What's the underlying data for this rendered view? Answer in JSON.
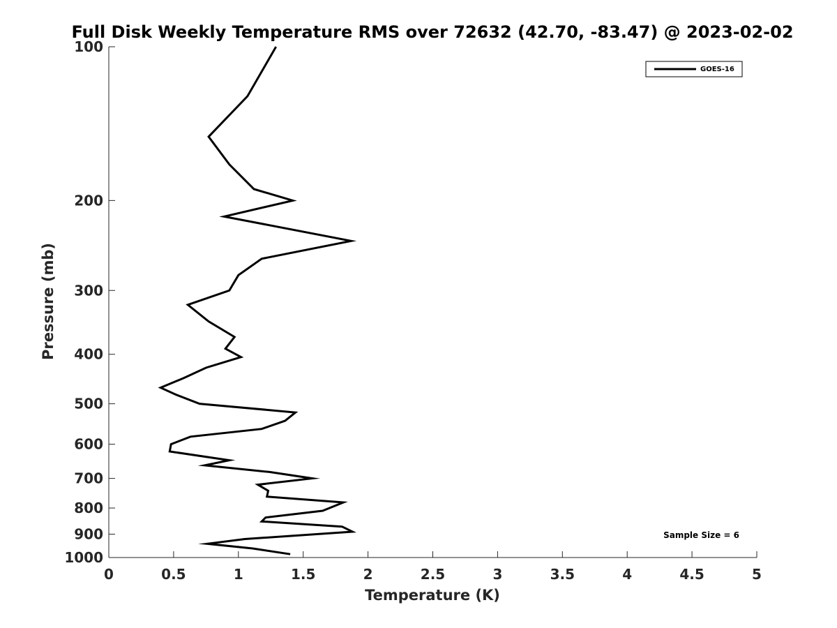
{
  "chart_data": {
    "type": "line",
    "title": "Full Disk Weekly Temperature RMS over 72632 (42.70, -83.47) @ 2023-02-02",
    "xlabel": "Temperature (K)",
    "ylabel": "Pressure (mb)",
    "xlim": [
      0,
      5
    ],
    "ylim": [
      100,
      1000
    ],
    "y_scale": "log",
    "y_reversed": true,
    "x_ticks": [
      "0",
      "0.5",
      "1",
      "1.5",
      "2",
      "2.5",
      "3",
      "3.5",
      "4",
      "4.5",
      "5"
    ],
    "y_ticks": [
      "100",
      "200",
      "300",
      "400",
      "500",
      "600",
      "700",
      "800",
      "900",
      "1000"
    ],
    "grid": false,
    "legend_position": "top-right",
    "annotation": "Sample Size = 6",
    "series": [
      {
        "name": "GOES-16",
        "color": "#000000",
        "points": [
          [
            1.29,
            100
          ],
          [
            1.07,
            125
          ],
          [
            0.77,
            150
          ],
          [
            0.93,
            170
          ],
          [
            1.12,
            190
          ],
          [
            1.42,
            200
          ],
          [
            0.89,
            215
          ],
          [
            1.87,
            240
          ],
          [
            1.18,
            260
          ],
          [
            1.0,
            280
          ],
          [
            0.93,
            300
          ],
          [
            0.61,
            320
          ],
          [
            0.77,
            345
          ],
          [
            0.97,
            370
          ],
          [
            0.9,
            390
          ],
          [
            1.02,
            405
          ],
          [
            0.75,
            425
          ],
          [
            0.58,
            445
          ],
          [
            0.4,
            465
          ],
          [
            0.52,
            480
          ],
          [
            0.7,
            500
          ],
          [
            1.44,
            520
          ],
          [
            1.36,
            540
          ],
          [
            1.18,
            560
          ],
          [
            0.63,
            580
          ],
          [
            0.48,
            600
          ],
          [
            0.47,
            620
          ],
          [
            0.93,
            645
          ],
          [
            0.74,
            660
          ],
          [
            1.24,
            680
          ],
          [
            1.57,
            700
          ],
          [
            1.15,
            720
          ],
          [
            1.23,
            740
          ],
          [
            1.22,
            760
          ],
          [
            1.81,
            780
          ],
          [
            1.65,
            810
          ],
          [
            1.21,
            835
          ],
          [
            1.18,
            850
          ],
          [
            1.8,
            870
          ],
          [
            1.88,
            890
          ],
          [
            1.05,
            920
          ],
          [
            0.76,
            940
          ],
          [
            1.11,
            960
          ],
          [
            1.4,
            985
          ]
        ]
      }
    ]
  }
}
